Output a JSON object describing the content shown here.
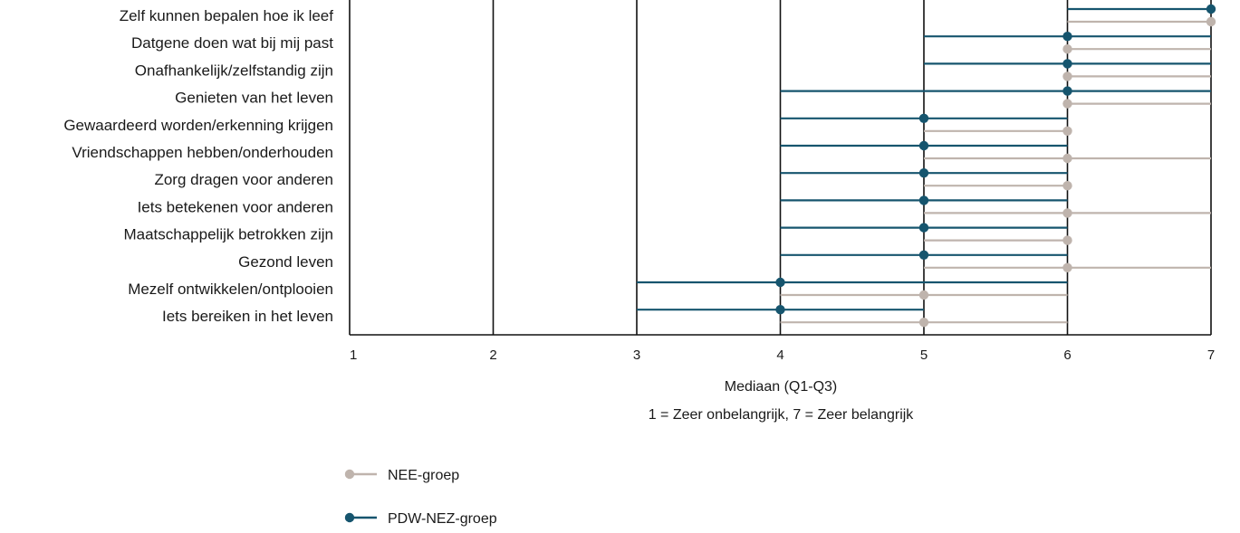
{
  "chart_data": {
    "type": "dot-range",
    "categories": [
      "Zelf kunnen bepalen hoe ik leef",
      "Datgene doen wat bij mij past",
      "Onafhankelijk/zelfstandig zijn",
      "Genieten van het leven",
      "Gewaardeerd worden/erkenning krijgen",
      "Vriendschappen hebben/onderhouden",
      "Zorg dragen voor anderen",
      "Iets betekenen voor anderen",
      "Maatschappelijk betrokken zijn",
      "Gezond leven",
      "Mezelf ontwikkelen/ontplooien",
      "Iets bereiken in het leven"
    ],
    "series": [
      {
        "name": "PDW-NEZ-groep",
        "color": "#16556e",
        "median": [
          7,
          6,
          6,
          6,
          5,
          5,
          5,
          5,
          5,
          5,
          4,
          4
        ],
        "q1": [
          6,
          5,
          5,
          4,
          4,
          4,
          4,
          4,
          4,
          4,
          3,
          3
        ],
        "q3": [
          7,
          7,
          7,
          7,
          6,
          6,
          6,
          6,
          6,
          6,
          6,
          5
        ]
      },
      {
        "name": "NEE-groep",
        "color": "#bfb4ad",
        "median": [
          7,
          6,
          6,
          6,
          6,
          6,
          6,
          6,
          6,
          6,
          5,
          5
        ],
        "q1": [
          6,
          6,
          6,
          6,
          5,
          5,
          5,
          5,
          5,
          5,
          4,
          4
        ],
        "q3": [
          7,
          7,
          7,
          7,
          6,
          7,
          6,
          7,
          6,
          7,
          6,
          6
        ]
      }
    ],
    "x_ticks": [
      "1",
      "2",
      "3",
      "4",
      "5",
      "6",
      "7"
    ],
    "xlim": [
      1,
      7
    ],
    "xlabel": "Mediaan (Q1-Q3)",
    "xlabel_sub": "1 = Zeer onbelangrijk, 7 = Zeer belangrijk",
    "legend": [
      {
        "name": "NEE-groep",
        "color": "#bfb4ad"
      },
      {
        "name": "PDW-NEZ-groep",
        "color": "#16556e"
      }
    ],
    "legend_position": "bottom-left",
    "grid": "vertical"
  }
}
